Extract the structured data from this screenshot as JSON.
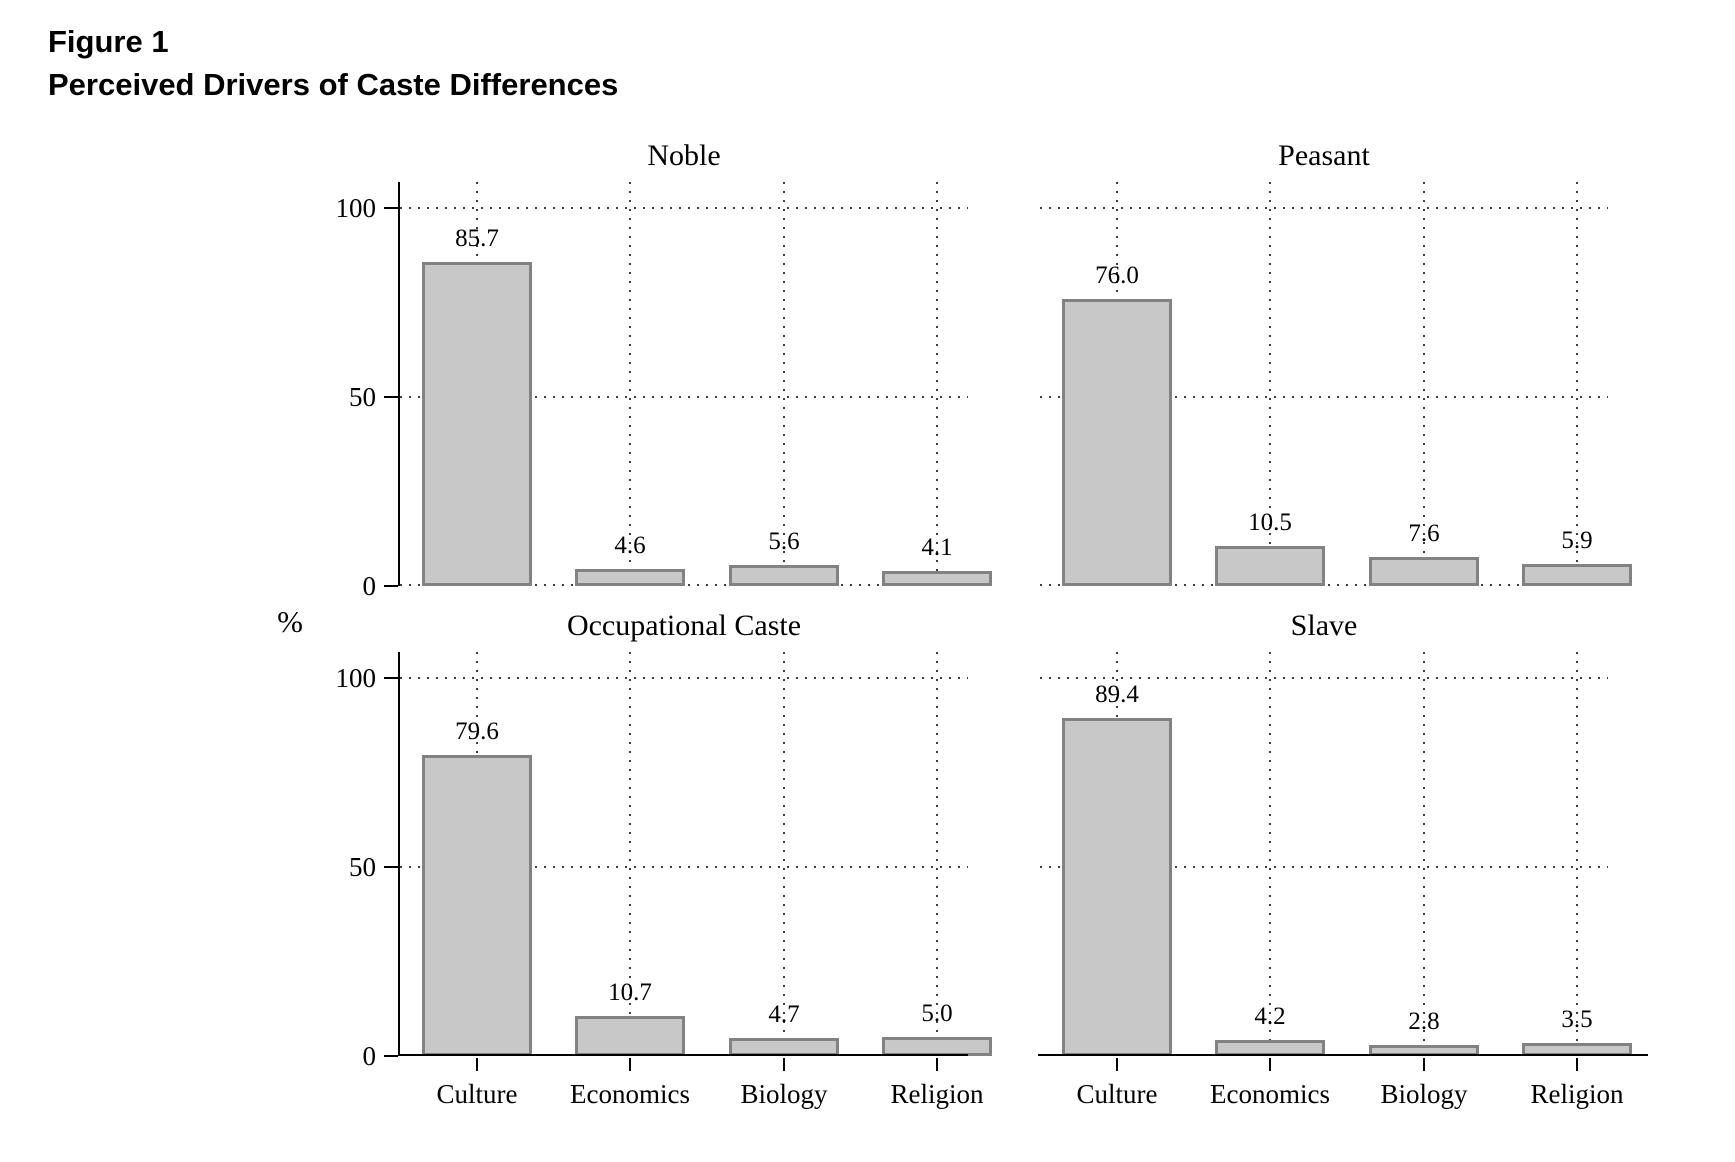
{
  "figure": {
    "title_line1": "Figure 1",
    "title_line2": "Perceived Drivers of Caste Differences"
  },
  "chart_data": {
    "type": "bar",
    "layout": "2x2-small-multiples",
    "categories": [
      "Culture",
      "Economics",
      "Biology",
      "Religion"
    ],
    "series": [
      {
        "name": "Noble",
        "values": [
          85.7,
          4.6,
          5.6,
          4.1
        ]
      },
      {
        "name": "Peasant",
        "values": [
          76.0,
          10.5,
          7.6,
          5.9
        ]
      },
      {
        "name": "Occupational Caste",
        "values": [
          79.6,
          10.7,
          4.7,
          5.0
        ]
      },
      {
        "name": "Slave",
        "values": [
          89.4,
          4.2,
          2.8,
          3.5
        ]
      }
    ],
    "ylabel": "%",
    "yticks": [
      0,
      50,
      100
    ],
    "ylim": [
      0,
      107
    ],
    "grid": "dotted-horizontal-and-vertical",
    "value_labels": true,
    "bar_fill": "#c8c8c8",
    "bar_border": "#828282",
    "notes": "y tick labels only on left column panels; category labels only on bottom row panels; top row panels have dotted zero line, bottom row panels have solid x-axis with tick marks"
  }
}
